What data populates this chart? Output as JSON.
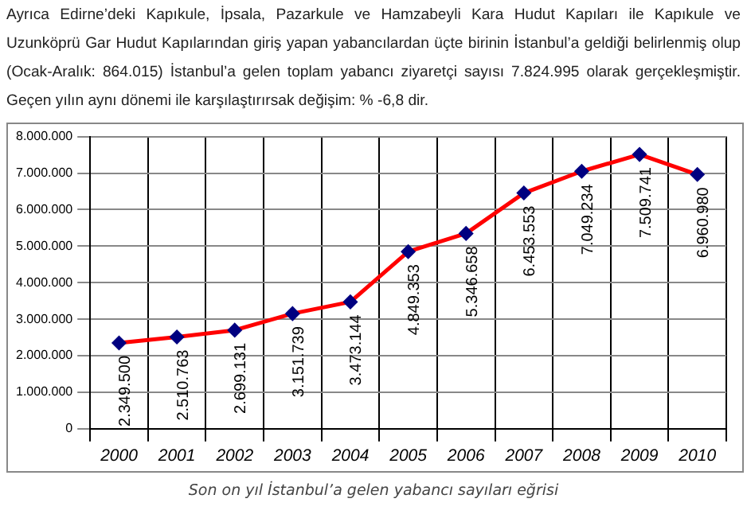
{
  "chart_data": {
    "type": "line",
    "title": "Son on yıl İstanbul’a gelen yabancı sayıları eğrisi",
    "annotations": [
      "Ayrıca Edirne’deki Kapıkule, İpsala, Pazarkule ve Hamzabeyli Kara Hudut Kapıları ile Kapıkule ve Uzunköprü Gar Hudut Kapılarından giriş yapan yabancılardan üçte birinin İstanbul’a geldiği belirlenmiş olup (Ocak-Aralık: 864.015) İstanbul’a gelen toplam yabancı ziyaretçi sayısı 7.824.995 olarak gerçekleşmiştir. Geçen yılın aynı dönemi ile karşılaştırırsak değişim: % -6,8 dir."
    ],
    "categories": [
      "2000",
      "2001",
      "2002",
      "2003",
      "2004",
      "2005",
      "2006",
      "2007",
      "2008",
      "2009",
      "2010"
    ],
    "series": [
      {
        "color": "#ff0000",
        "values": [
          2349500,
          2510763,
          2699131,
          3151739,
          3473144,
          4849353,
          5346658,
          6453553,
          7049234,
          7509741,
          6960980
        ],
        "value_labels": [
          "2.349.500",
          "2.510.763",
          "2.699.131",
          "3.151.739",
          "3.473.144",
          "4.849.353",
          "5.346.658",
          "6.453.553",
          "7.049.234",
          "7.509.741",
          "6.960.980"
        ]
      }
    ],
    "ylim": [
      0,
      8000000
    ],
    "yticks": [
      0,
      {
        "value": 1000000,
        "label": "1.000.000"
      },
      {
        "value": 2000000,
        "label": "2.000.000"
      },
      {
        "value": 3000000,
        "label": "3.000.000"
      },
      {
        "value": 4000000,
        "label": "4.000.000"
      },
      {
        "value": 5000000,
        "label": "5.000.000"
      },
      {
        "value": 6000000,
        "label": "6.000.000"
      },
      {
        "value": 7000000,
        "label": "7.000.000"
      },
      {
        "value": 8000000,
        "label": "8.000.000"
      }
    ],
    "grid": true,
    "legend": false,
    "marker": "diamond",
    "line_style": "solid"
  }
}
